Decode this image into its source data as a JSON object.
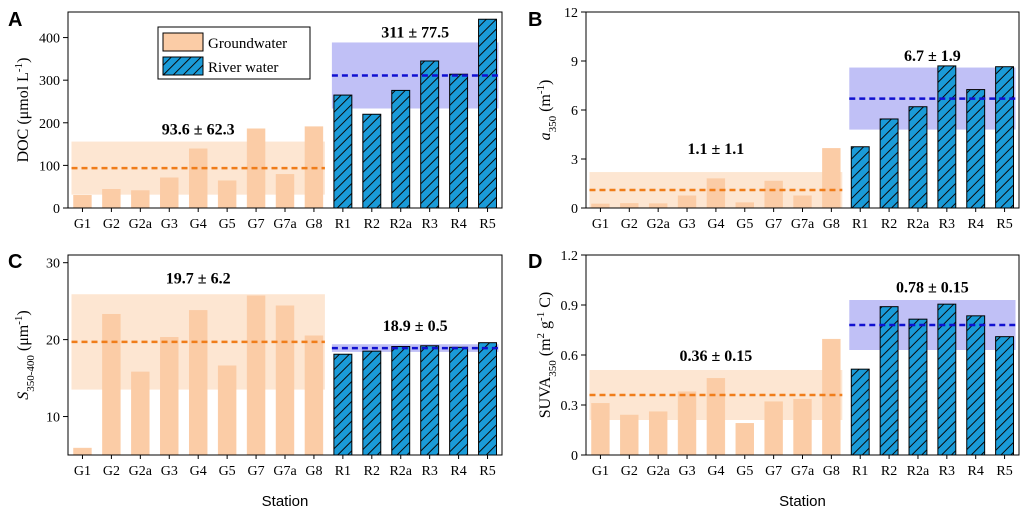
{
  "figure": {
    "station_label": "Station",
    "legend": [
      {
        "name": "Groundwater",
        "kind": "gw"
      },
      {
        "name": "River water",
        "kind": "rw"
      }
    ],
    "colors": {
      "groundwater_bar": "#fbcca6",
      "groundwater_band": "#fde6d2",
      "groundwater_mean_line": "#f07d1a",
      "river_bar": "#1a9bd8",
      "river_band": "#b5b5f5",
      "river_mean_line": "#1010d0",
      "axis": "#000000"
    }
  },
  "chart_data": [
    {
      "panel": "A",
      "type": "bar",
      "categories": [
        "G1",
        "G2",
        "G2a",
        "G3",
        "G4",
        "G5",
        "G7",
        "G7a",
        "G8",
        "R1",
        "R2",
        "R2a",
        "R3",
        "R4",
        "R5"
      ],
      "groups": [
        "gw",
        "gw",
        "gw",
        "gw",
        "gw",
        "gw",
        "gw",
        "gw",
        "gw",
        "rw",
        "rw",
        "rw",
        "rw",
        "rw",
        "rw"
      ],
      "values": [
        30,
        44,
        41,
        71,
        139,
        64,
        186,
        79,
        191,
        265,
        220,
        276,
        345,
        314,
        443
      ],
      "ylabel": "DOC (μmol L",
      "ylabel_sup": "-1",
      "ylabel_end": ")",
      "ylim": [
        0,
        460
      ],
      "yticks": [
        0,
        100,
        200,
        300,
        400
      ],
      "gw_mean": 93.6,
      "gw_band": [
        31.3,
        155.9
      ],
      "rw_mean": 311,
      "rw_band": [
        233.5,
        388.5
      ],
      "gw_annotation": "93.6 ± 62.3",
      "rw_annotation": "311 ± 77.5",
      "gw_annot_value": 172,
      "rw_annot_value": 400,
      "show_legend": true,
      "show_xlabel": false
    },
    {
      "panel": "B",
      "type": "bar",
      "categories": [
        "G1",
        "G2",
        "G2a",
        "G3",
        "G4",
        "G5",
        "G7",
        "G7a",
        "G8",
        "R1",
        "R2",
        "R2a",
        "R3",
        "R4",
        "R5"
      ],
      "groups": [
        "gw",
        "gw",
        "gw",
        "gw",
        "gw",
        "gw",
        "gw",
        "gw",
        "gw",
        "rw",
        "rw",
        "rw",
        "rw",
        "rw",
        "rw"
      ],
      "values": [
        0.25,
        0.28,
        0.27,
        0.75,
        1.8,
        0.33,
        1.65,
        0.75,
        3.65,
        3.75,
        5.45,
        6.2,
        8.7,
        7.25,
        8.65
      ],
      "ylabel": "a",
      "ylabel_sub": "350",
      "ylabel_end": " (m",
      "ylabel_sup": "-1",
      "ylabel_end2": ")",
      "ylim": [
        0,
        12
      ],
      "yticks": [
        0,
        3,
        6,
        9,
        12
      ],
      "gw_mean": 1.1,
      "gw_band": [
        0.0,
        2.2
      ],
      "rw_mean": 6.7,
      "rw_band": [
        4.8,
        8.6
      ],
      "gw_annotation": "1.1 ± 1.1",
      "rw_annotation": "6.7 ± 1.9",
      "gw_annot_value": 3.3,
      "rw_annot_value": 9.0,
      "show_legend": false,
      "show_xlabel": false
    },
    {
      "panel": "C",
      "type": "bar",
      "categories": [
        "G1",
        "G2",
        "G2a",
        "G3",
        "G4",
        "G5",
        "G7",
        "G7a",
        "G8",
        "R1",
        "R2",
        "R2a",
        "R3",
        "R4",
        "R5"
      ],
      "groups": [
        "gw",
        "gw",
        "gw",
        "gw",
        "gw",
        "gw",
        "gw",
        "gw",
        "gw",
        "rw",
        "rw",
        "rw",
        "rw",
        "rw",
        "rw"
      ],
      "values": [
        5.9,
        23.3,
        15.8,
        20.3,
        23.8,
        16.6,
        25.7,
        24.4,
        20.5,
        18.1,
        18.5,
        19.1,
        19.2,
        19.0,
        19.6
      ],
      "ylabel": "S",
      "ylabel_sub": "350-400",
      "ylabel_end": " (μm",
      "ylabel_sup": "-1",
      "ylabel_end2": ")",
      "ylim": [
        5,
        31
      ],
      "yticks": [
        10,
        20,
        30
      ],
      "gw_mean": 19.7,
      "gw_band": [
        13.5,
        25.9
      ],
      "rw_mean": 18.9,
      "rw_band": [
        18.4,
        19.4
      ],
      "gw_annotation": "19.7 ± 6.2",
      "rw_annotation": "18.9 ± 0.5",
      "gw_annot_value": 27.3,
      "rw_annot_value": 21.1,
      "show_legend": false,
      "show_xlabel": true
    },
    {
      "panel": "D",
      "type": "bar",
      "categories": [
        "G1",
        "G2",
        "G2a",
        "G3",
        "G4",
        "G5",
        "G7",
        "G7a",
        "G8",
        "R1",
        "R2",
        "R2a",
        "R3",
        "R4",
        "R5"
      ],
      "groups": [
        "gw",
        "gw",
        "gw",
        "gw",
        "gw",
        "gw",
        "gw",
        "gw",
        "gw",
        "rw",
        "rw",
        "rw",
        "rw",
        "rw",
        "rw"
      ],
      "values": [
        0.31,
        0.24,
        0.26,
        0.38,
        0.46,
        0.19,
        0.32,
        0.335,
        0.695,
        0.515,
        0.89,
        0.815,
        0.905,
        0.835,
        0.71
      ],
      "ylabel": "SUVA",
      "ylabel_sub": "350",
      "ylabel_end": " (m",
      "ylabel_sup": "2",
      "ylabel_end2": " g",
      "ylabel_sup2": "-1",
      "ylabel_end3": " C)",
      "ylim": [
        0,
        1.2
      ],
      "yticks": [
        0,
        0.3,
        0.6,
        0.9,
        1.2
      ],
      "ytick_labels": [
        "0",
        "0.3",
        "0.6",
        "0.9",
        "1.2"
      ],
      "gw_mean": 0.36,
      "gw_band": [
        0.21,
        0.51
      ],
      "rw_mean": 0.78,
      "rw_band": [
        0.63,
        0.93
      ],
      "gw_annotation": "0.36 ± 0.15",
      "rw_annotation": "0.78 ± 0.15",
      "gw_annot_value": 0.565,
      "rw_annot_value": 0.975,
      "show_legend": false,
      "show_xlabel": true
    }
  ]
}
